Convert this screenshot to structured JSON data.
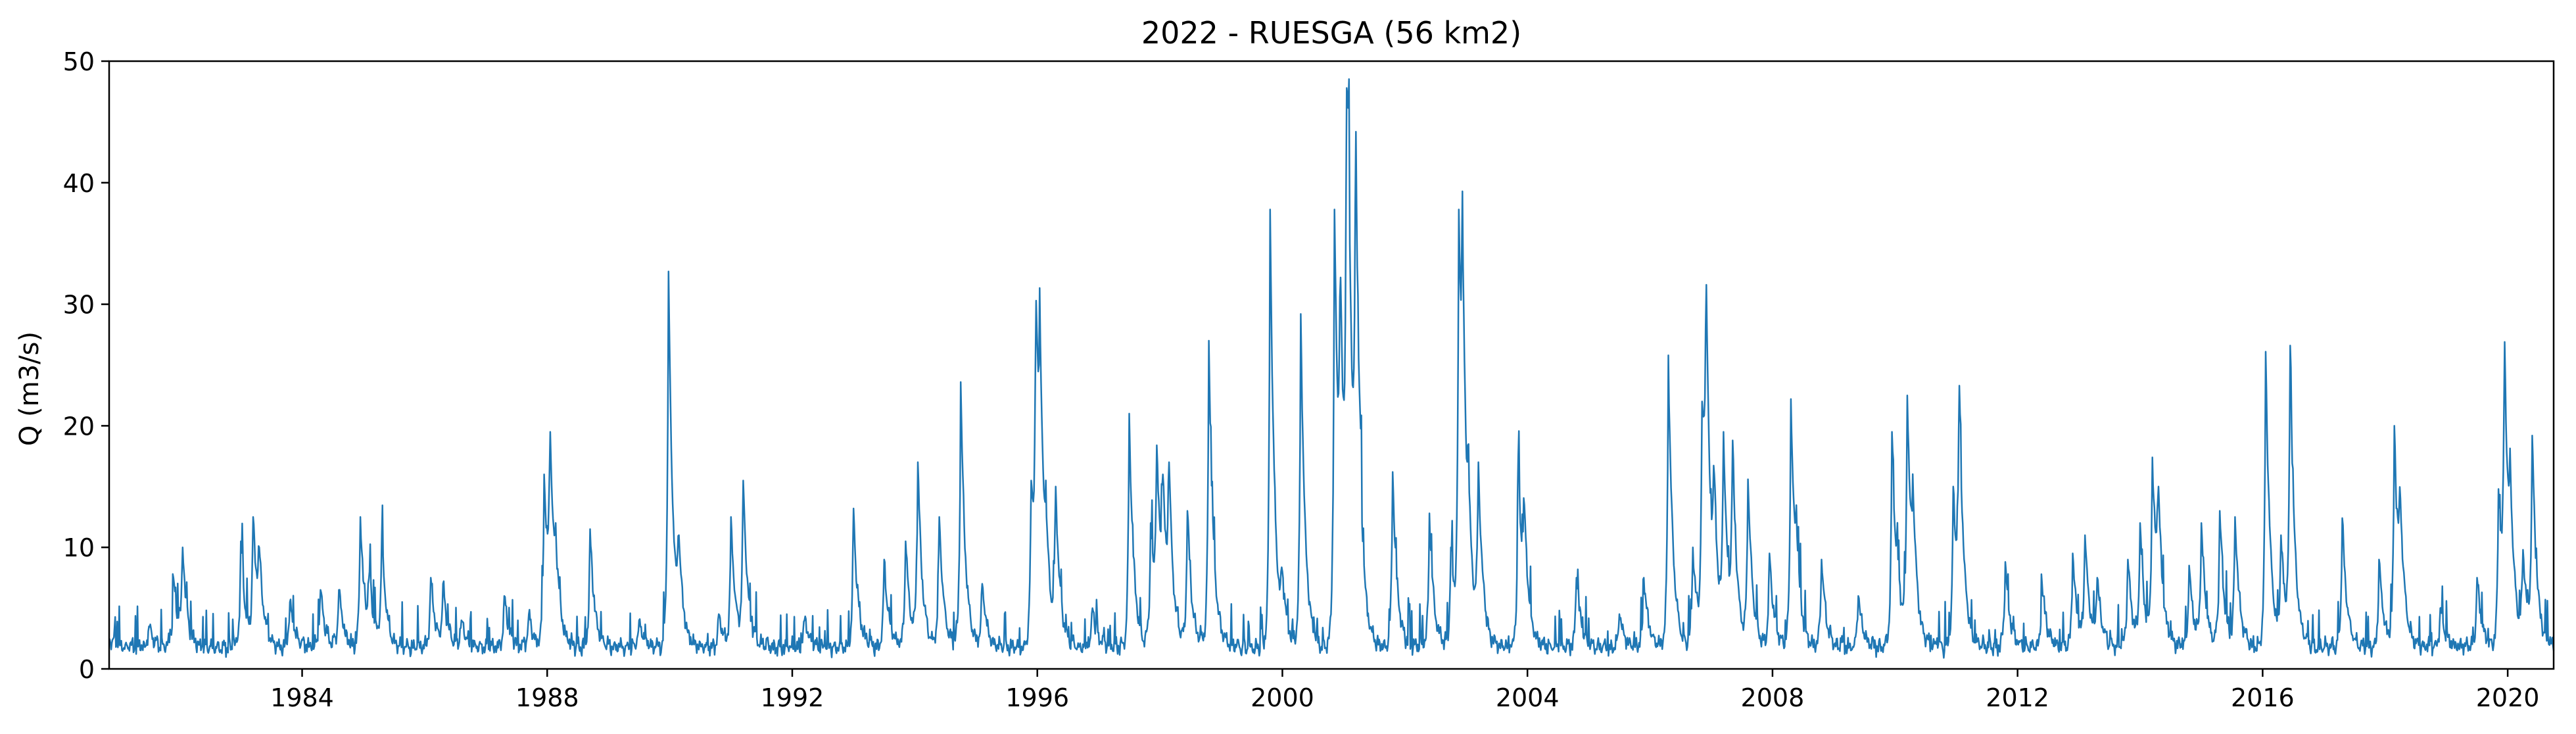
{
  "chart_data": {
    "type": "line",
    "title": "2022 - RUESGA (56 km2)",
    "xlabel": "",
    "ylabel": "Q (m3/s)",
    "xlim": [
      1980.85,
      2020.75
    ],
    "ylim": [
      0,
      50
    ],
    "x_ticks": [
      1984,
      1988,
      1992,
      1996,
      2000,
      2004,
      2008,
      2012,
      2016,
      2020
    ],
    "y_ticks": [
      0,
      10,
      20,
      30,
      40,
      50
    ],
    "grid": false,
    "legend": "none",
    "series_color": "#1f77b4",
    "base_flow": 1.5,
    "series": [
      {
        "x": [
          1980.85,
          1981.5,
          1981.9,
          1982.05,
          1983.0,
          1983.2,
          1983.3,
          1983.8,
          1984.3,
          1984.6,
          1984.95,
          1985.1,
          1985.3,
          1986.1,
          1986.3,
          1986.6,
          1987.3,
          1987.7,
          1987.95,
          1988.05,
          1988.15,
          1988.7,
          1989.5,
          1989.98,
          1990.15,
          1990.8,
          1991.0,
          1991.2,
          1992.2,
          1993.0,
          1993.5,
          1993.85,
          1994.05,
          1994.4,
          1994.75,
          1995.1,
          1995.9,
          1995.98,
          1996.05,
          1996.15,
          1996.3,
          1996.9,
          1997.5,
          1997.85,
          1997.95,
          1998.05,
          1998.15,
          1998.45,
          1998.8,
          1999.8,
          2000.0,
          2000.3,
          2000.85,
          2000.95,
          2001.05,
          2001.1,
          2001.2,
          2001.3,
          2001.8,
          2002.4,
          2002.75,
          2002.88,
          2002.95,
          2003.05,
          2003.2,
          2003.85,
          2003.95,
          2004.8,
          2005.5,
          2005.9,
          2006.3,
          2006.7,
          2006.85,
          2006.92,
          2007.05,
          2007.2,
          2007.35,
          2007.6,
          2007.95,
          2008.3,
          2008.4,
          2008.8,
          2009.4,
          2009.95,
          2010.05,
          2010.2,
          2010.3,
          2010.95,
          2011.05,
          2011.8,
          2012.4,
          2012.9,
          2013.1,
          2013.3,
          2013.8,
          2014.0,
          2014.2,
          2014.3,
          2014.8,
          2015.0,
          2015.3,
          2015.55,
          2016.05,
          2016.3,
          2016.45,
          2017.3,
          2017.9,
          2018.15,
          2018.25,
          2018.9,
          2019.5,
          2019.85,
          2019.95,
          2020.05,
          2020.25,
          2020.4,
          2020.75
        ],
        "y": [
          2.5,
          3.5,
          7.5,
          10,
          10.5,
          12.5,
          10,
          5.5,
          6.5,
          6.5,
          12.5,
          8,
          11,
          7.5,
          7,
          4,
          6,
          4.5,
          16,
          19.5,
          10,
          11.5,
          4,
          32.7,
          11,
          4.5,
          12.5,
          15.5,
          4,
          13.2,
          9,
          10.5,
          17,
          12.5,
          23.6,
          7,
          15.5,
          30.3,
          26.7,
          12.5,
          15,
          5,
          21,
          12,
          18.4,
          16,
          17,
          13,
          27,
          37.8,
          8,
          29.2,
          37.8,
          32.2,
          47.8,
          35,
          44.2,
          12,
          16.2,
          12.8,
          10,
          37.8,
          33,
          14.5,
          17,
          17.5,
          13.5,
          7.5,
          4.5,
          7.5,
          25.8,
          10,
          22,
          31.6,
          16,
          19.5,
          18.8,
          15.6,
          9.5,
          22.2,
          11,
          9,
          6,
          19.5,
          9,
          22.5,
          14,
          15,
          23.3,
          8.8,
          7,
          9.5,
          11,
          7.5,
          9,
          12,
          17.4,
          15,
          8.5,
          12,
          13,
          12.5,
          26.1,
          11,
          26.6,
          12.4,
          9,
          20,
          14,
          5,
          7.5,
          14.8,
          26.9,
          15.5,
          9.8,
          19.2,
          1.5
        ]
      }
    ]
  }
}
